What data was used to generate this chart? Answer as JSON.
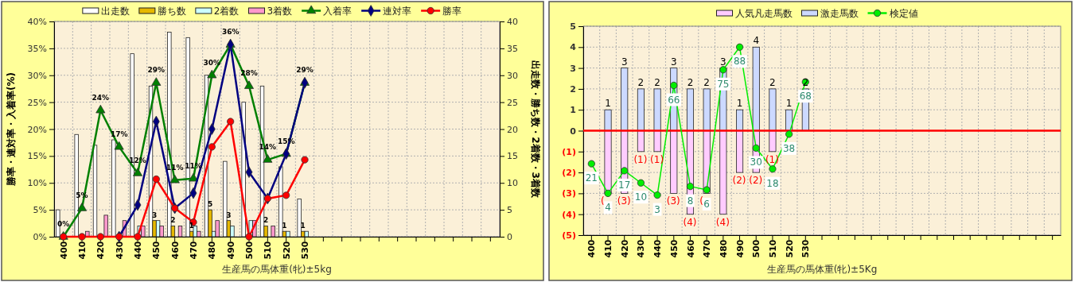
{
  "chart_data": [
    {
      "type": "bar",
      "xlabel": "生産馬の馬体重(牝)±5kg",
      "ylabel": "勝率・連対率・入着率(%)",
      "y2label": "出走数・勝ち数・2着数・3着数",
      "legend": "top",
      "grid": true,
      "categories": [
        "400",
        "410",
        "420",
        "430",
        "440",
        "450",
        "460",
        "470",
        "480",
        "490",
        "500",
        "510",
        "520",
        "530",
        null,
        null,
        null,
        null,
        null,
        null,
        null,
        null,
        null,
        null
      ],
      "ylim": [
        0,
        40
      ],
      "yticks": [
        {
          "value": 0,
          "label": "0%"
        },
        {
          "value": 5,
          "label": "5%"
        },
        {
          "value": 10,
          "label": "10%"
        },
        {
          "value": 15,
          "label": "15%"
        },
        {
          "value": 20,
          "label": "20%"
        },
        {
          "value": 25,
          "label": "25%"
        },
        {
          "value": 30,
          "label": "30%"
        },
        {
          "value": 35,
          "label": "35%"
        },
        {
          "value": 40,
          "label": "40%"
        }
      ],
      "y2lim": [
        0,
        40
      ],
      "y2ticks": [
        0,
        5,
        10,
        15,
        20,
        25,
        30,
        35,
        40
      ],
      "series": [
        {
          "name": "出走数",
          "axis": "y2",
          "color": "#ffffff",
          "values": [
            5,
            19,
            17,
            18,
            34,
            28,
            38,
            37,
            30,
            14,
            25,
            28,
            13,
            7,
            null,
            null,
            null,
            null,
            null,
            null,
            null,
            null,
            null,
            null
          ]
        },
        {
          "name": "勝ち数",
          "axis": "y2",
          "color": "#e6b800",
          "values": [
            0,
            0,
            0,
            0,
            0,
            3,
            2,
            1,
            5,
            3,
            0,
            2,
            1,
            1,
            null,
            null,
            null,
            null,
            null,
            null,
            null,
            null,
            null,
            null
          ],
          "value_labels": [
            null,
            null,
            null,
            null,
            null,
            "3",
            "2",
            "1",
            "5",
            "3",
            null,
            "2",
            "1",
            "1",
            null,
            null,
            null,
            null,
            null,
            null,
            null,
            null,
            null,
            null
          ]
        },
        {
          "name": "2着数",
          "axis": "y2",
          "color": "#ccffff",
          "values": [
            0,
            0,
            0,
            0,
            2,
            3,
            0,
            2,
            1,
            2,
            3,
            0,
            1,
            1,
            null,
            null,
            null,
            null,
            null,
            null,
            null,
            null,
            null,
            null
          ]
        },
        {
          "name": "3着数",
          "axis": "y2",
          "color": "#ff99cc",
          "values": [
            0,
            1,
            4,
            3,
            2,
            2,
            2,
            1,
            3,
            0,
            3,
            2,
            0,
            0,
            null,
            null,
            null,
            null,
            null,
            null,
            null,
            null,
            null,
            null
          ]
        },
        {
          "name": "入着率",
          "type": "line",
          "marker": "triangle",
          "color": "#008000",
          "values": [
            0,
            5.3,
            23.5,
            16.7,
            11.8,
            28.6,
            10.5,
            10.8,
            30,
            35.7,
            28,
            14.3,
            15.4,
            28.6,
            null,
            null,
            null,
            null,
            null,
            null,
            null,
            null,
            null,
            null
          ],
          "value_labels": [
            "0%",
            "5%",
            "24%",
            "17%",
            "12%",
            "29%",
            "11%",
            "11%",
            "30%",
            "36%",
            "28%",
            "14%",
            "15%",
            "29%",
            null,
            null,
            null,
            null,
            null,
            null,
            null,
            null,
            null,
            null
          ]
        },
        {
          "name": "連対率",
          "type": "line",
          "marker": "diamond",
          "color": "#000080",
          "values": [
            null,
            null,
            null,
            0,
            5.9,
            21.4,
            5.3,
            8.1,
            20,
            35.7,
            12,
            7.1,
            15.4,
            28.6,
            null,
            null,
            null,
            null,
            null,
            null,
            null,
            null,
            null,
            null
          ]
        },
        {
          "name": "勝率",
          "type": "line",
          "marker": "circle",
          "color": "#ff0000",
          "values": [
            0,
            0,
            0,
            0,
            0,
            10.7,
            5.3,
            2.7,
            16.7,
            21.4,
            0,
            7.1,
            7.7,
            14.3,
            null,
            null,
            null,
            null,
            null,
            null,
            null,
            null,
            null,
            null
          ]
        }
      ]
    },
    {
      "type": "bar",
      "xlabel": "生産馬の馬体重(牝)±5Kg",
      "legend": "top",
      "grid": true,
      "stacked": true,
      "categories": [
        "400",
        "410",
        "420",
        "430",
        "440",
        "450",
        "460",
        "470",
        "480",
        "490",
        "500",
        "510",
        "520",
        "530",
        null,
        null,
        null,
        null,
        null,
        null,
        null,
        null,
        null,
        null,
        null,
        null,
        null,
        null,
        null
      ],
      "ylim": [
        -5,
        5
      ],
      "yticks": [
        {
          "value": -5,
          "label": "(5)"
        },
        {
          "value": -4,
          "label": "(4)"
        },
        {
          "value": -3,
          "label": "(3)"
        },
        {
          "value": -2,
          "label": "(2)"
        },
        {
          "value": -1,
          "label": "(1)"
        },
        0,
        1,
        2,
        3,
        4,
        5
      ],
      "y2lim": [
        -20,
        100
      ],
      "ref_lines": [
        {
          "axis": "y",
          "value": 0,
          "color": "#ff0000"
        }
      ],
      "series": [
        {
          "name": "人気凡走馬数",
          "color": "#ffccff",
          "values": [
            0,
            -3,
            -3,
            -1,
            -1,
            -3,
            -4,
            -3,
            -4,
            -2,
            -2,
            -1,
            0,
            0,
            null,
            null,
            null,
            null,
            null,
            null,
            null,
            null,
            null,
            null,
            null,
            null,
            null,
            null,
            null
          ],
          "value_labels": [
            null,
            "(",
            "(3)",
            "(1)",
            "(1)",
            "(3)",
            "(4)",
            "(",
            "(4)",
            "(2)",
            "(2)",
            "(1)",
            null,
            null,
            null,
            null,
            null,
            null,
            null,
            null,
            null,
            null,
            null,
            null,
            null,
            null,
            null,
            null,
            null
          ]
        },
        {
          "name": "激走馬数",
          "color": "#ccd9ff",
          "values": [
            0,
            1,
            3,
            2,
            2,
            3,
            2,
            2,
            3,
            1,
            4,
            2,
            1,
            2,
            null,
            null,
            null,
            null,
            null,
            null,
            null,
            null,
            null,
            null,
            null,
            null,
            null,
            null,
            null
          ],
          "value_labels": [
            null,
            "1",
            "3",
            "2",
            "2",
            "3",
            "2",
            "2",
            "3",
            "1",
            "4",
            "2",
            "1",
            "2",
            null,
            null,
            null,
            null,
            null,
            null,
            null,
            null,
            null,
            null,
            null,
            null,
            null,
            null,
            null
          ]
        },
        {
          "name": "検定値",
          "type": "line",
          "axis": "y2",
          "marker": "circle",
          "color": "#00ee00",
          "values": [
            21,
            4,
            17,
            10,
            3,
            66,
            8,
            6,
            75,
            88,
            30,
            18,
            38,
            68,
            null,
            null,
            null,
            null,
            null,
            null,
            null,
            null,
            null,
            null,
            null,
            null,
            null,
            null,
            null
          ],
          "value_labels": [
            "21",
            "4",
            "17",
            "10",
            "3",
            "66",
            "8",
            "6",
            "75",
            "88",
            "30",
            "18",
            "38",
            "68",
            null,
            null,
            null,
            null,
            null,
            null,
            null,
            null,
            null,
            null,
            null,
            null,
            null,
            null,
            null
          ]
        }
      ]
    }
  ]
}
